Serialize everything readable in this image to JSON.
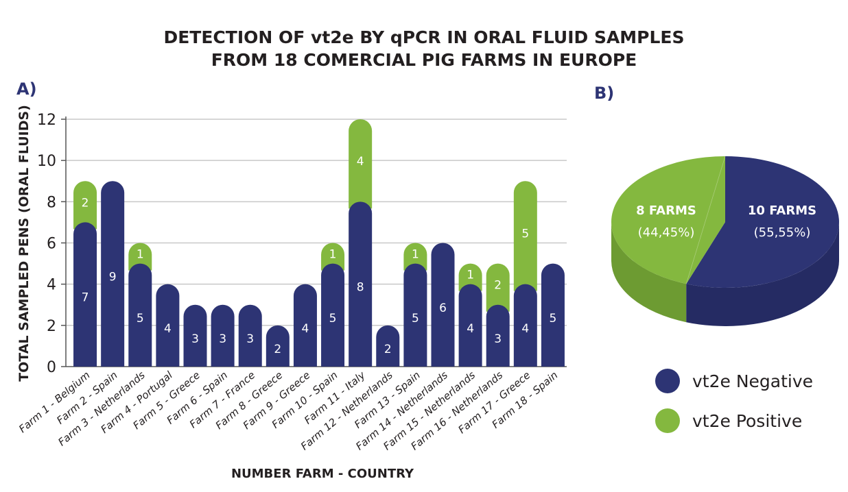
{
  "title_lines": [
    "DETECTION OF vt2e BY qPCR IN ORAL FLUID SAMPLES",
    "FROM 18 COMERCIAL PIG FARMS IN EUROPE"
  ],
  "panel_a": "A)",
  "panel_b": "B)",
  "colors": {
    "negative": "#2d3474",
    "positive": "#84b83f",
    "positive_side": "#6d9b32",
    "negative_side": "#252b63",
    "grid": "#c8c8c8",
    "axis": "#555555"
  },
  "chart_data": [
    {
      "type": "bar",
      "stacked": true,
      "xlabel": "NUMBER FARM - COUNTRY",
      "ylabel": "TOTAL SAMPLED PENS (ORAL FLUIDS)",
      "ylim": [
        0,
        12
      ],
      "yticks": [
        0,
        2,
        4,
        6,
        8,
        10,
        12
      ],
      "grid": true,
      "categories": [
        "Farm 1 - Belgium",
        "Farm 2 - Spain",
        "Farm 3 - Netherlands",
        "Farm 4 - Portugal",
        "Farm 5 - Greece",
        "Farm 6 - Spain",
        "Farm 7 - France",
        "Farm 8 - Greece",
        "Farm 9 - Greece",
        "Farm 10 - Spain",
        "Farm 11 - Italy",
        "Farm 12 - Netherlands",
        "Farm 13 - Spain",
        "Farm 14 - Netherlands",
        "Farm 15 - Netherlands",
        "Farm 16 - Netherlands",
        "Farm 17 - Greece",
        "Farm 18 - Spain"
      ],
      "series": [
        {
          "name": "vt2e Negative",
          "values": [
            7,
            9,
            5,
            4,
            3,
            3,
            3,
            2,
            4,
            5,
            8,
            2,
            5,
            6,
            4,
            3,
            4,
            5
          ]
        },
        {
          "name": "vt2e Positive",
          "values": [
            2,
            0,
            1,
            0,
            0,
            0,
            0,
            0,
            0,
            1,
            4,
            0,
            1,
            0,
            1,
            2,
            5,
            0
          ]
        }
      ]
    },
    {
      "type": "pie",
      "style": "3d",
      "slices": [
        {
          "label": "10 FARMS",
          "percent_label": "(55,55%)",
          "value": 55.55,
          "series": "vt2e Negative"
        },
        {
          "label": "8 FARMS",
          "percent_label": "(44,45%)",
          "value": 44.45,
          "series": "vt2e Positive"
        }
      ],
      "legend": "bottom-right"
    }
  ],
  "legend_items": [
    {
      "label": "vt2e Negative",
      "color": "#2d3474"
    },
    {
      "label": "vt2e Positive",
      "color": "#84b83f"
    }
  ]
}
